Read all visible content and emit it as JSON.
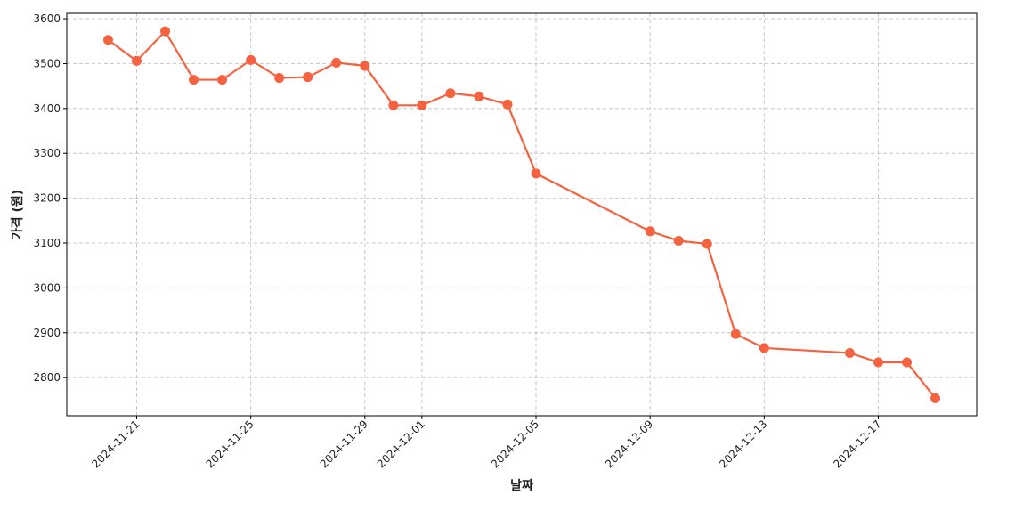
{
  "chart_data": {
    "type": "line",
    "x_label": "날짜",
    "y_label": "가격 (원)",
    "x": [
      "2024-11-20",
      "2024-11-21",
      "2024-11-22",
      "2024-11-23",
      "2024-11-24",
      "2024-11-25",
      "2024-11-26",
      "2024-11-27",
      "2024-11-28",
      "2024-11-29",
      "2024-11-30",
      "2024-12-01",
      "2024-12-02",
      "2024-12-03",
      "2024-12-04",
      "2024-12-05",
      "2024-12-09",
      "2024-12-10",
      "2024-12-11",
      "2024-12-12",
      "2024-12-13",
      "2024-12-16",
      "2024-12-17",
      "2024-12-18",
      "2024-12-19"
    ],
    "series": [
      {
        "color": "#f4623f",
        "values": [
          3553,
          3506,
          3572,
          3464,
          3464,
          3508,
          3468,
          3470,
          3502,
          3495,
          3407,
          3407,
          3434,
          3427,
          3409,
          3255,
          3126,
          3105,
          3098,
          2897,
          2866,
          2855,
          2834,
          2834,
          2754
        ]
      }
    ],
    "xlim": [
      "2024-11-18T13:12:00Z",
      "2024-12-20T10:48:00Z"
    ],
    "xticks": [
      "2024-11-21",
      "2024-11-25",
      "2024-11-29",
      "2024-12-01",
      "2024-12-05",
      "2024-12-09",
      "2024-12-13",
      "2024-12-17"
    ],
    "ylim": [
      2715,
      3612
    ],
    "yticks": [
      2800,
      2900,
      3000,
      3100,
      3200,
      3300,
      3400,
      3500,
      3600
    ],
    "grid": true
  }
}
